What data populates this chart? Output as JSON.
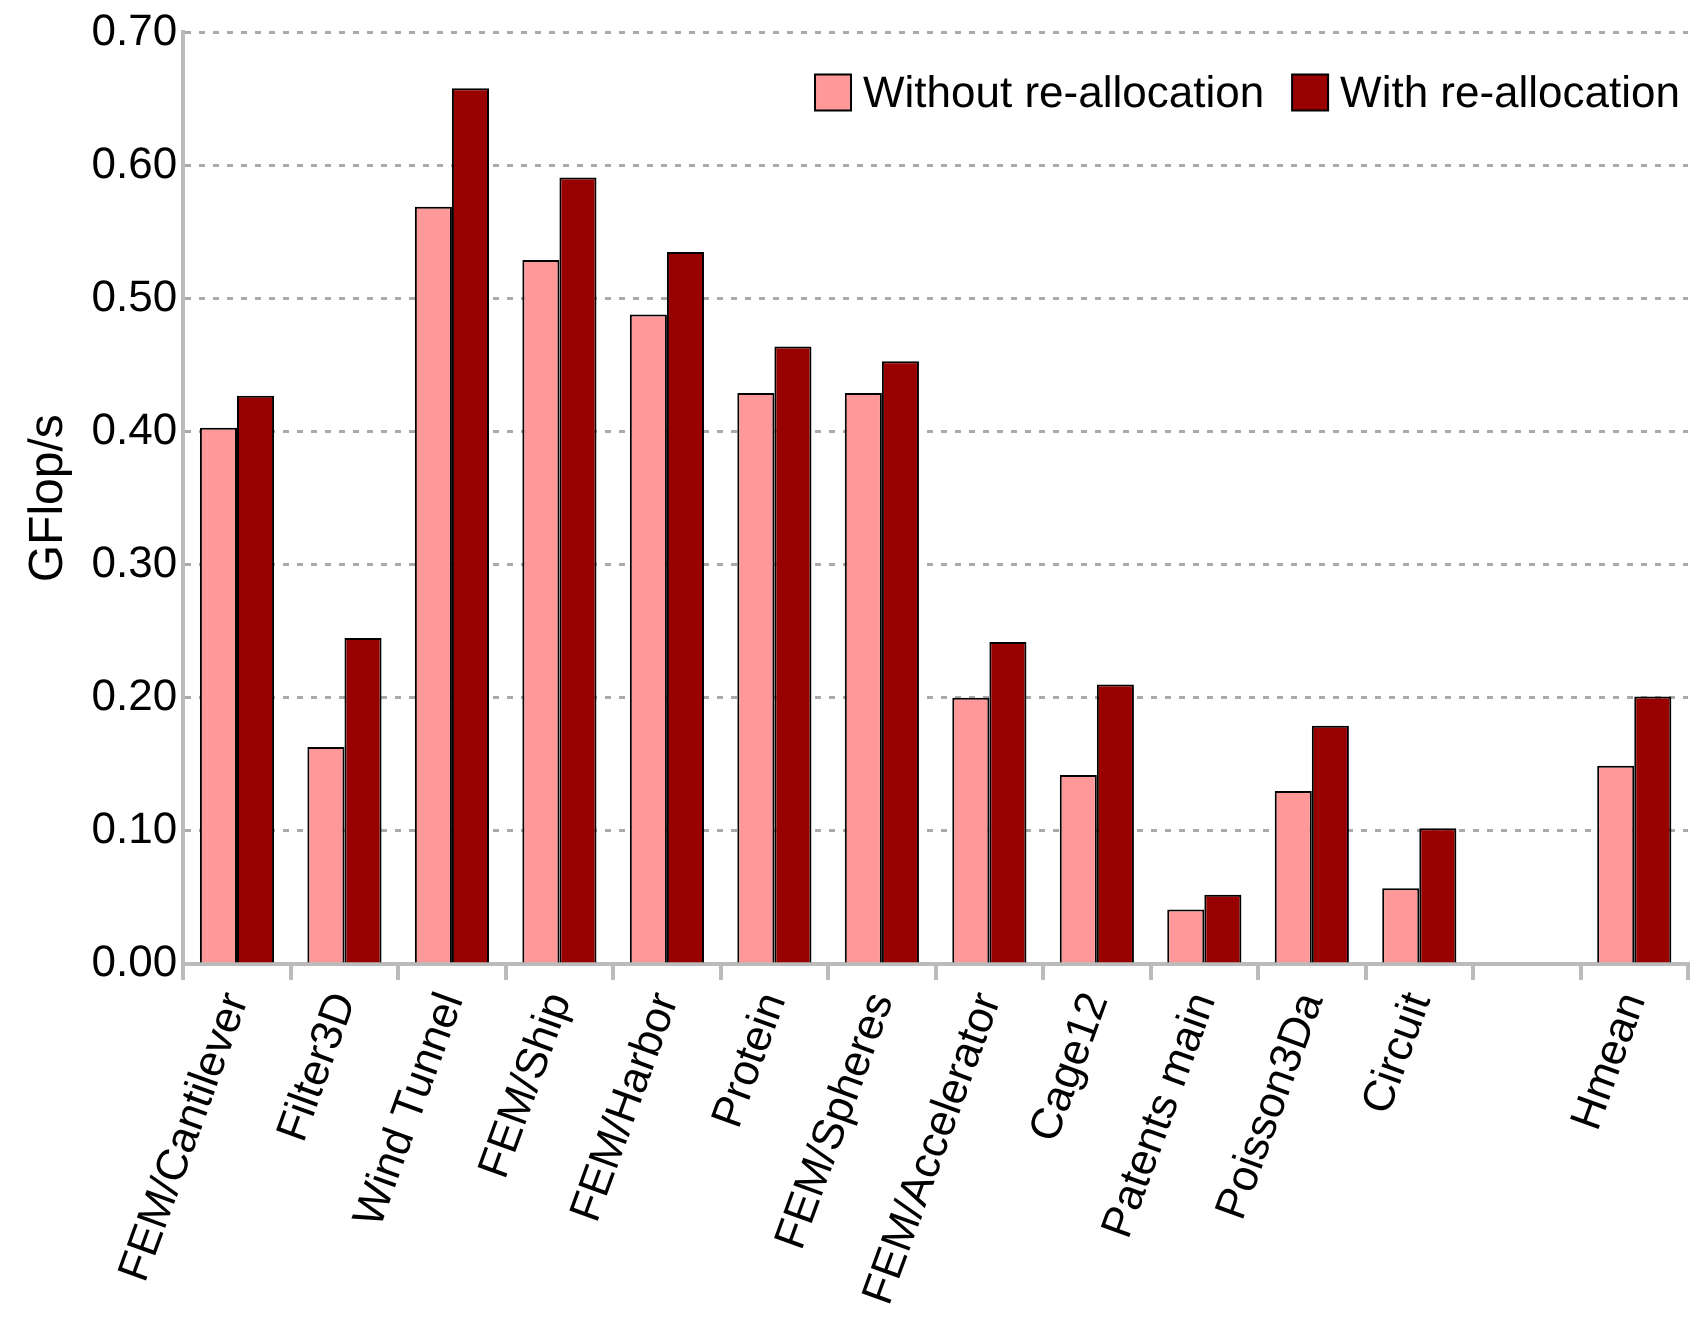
{
  "chart_data": {
    "type": "bar",
    "ylabel": "GFlop/s",
    "categories": [
      "FEM/Cantilever",
      "Filter3D",
      "Wind Tunnel",
      "FEM/Ship",
      "FEM/Harbor",
      "Protein",
      "FEM/Spheres",
      "FEM/Accelerator",
      "Cage12",
      "Patents main",
      "Poisson3Da",
      "Circuit",
      null,
      "Hmean"
    ],
    "series": [
      {
        "name": "Without re-allocation",
        "color": "#ff9999",
        "values": [
          0.403,
          0.163,
          0.569,
          0.529,
          0.488,
          0.429,
          0.429,
          0.2,
          0.142,
          0.041,
          0.13,
          0.057,
          null,
          0.149
        ]
      },
      {
        "name": "With re-allocation",
        "color": "#990000",
        "values": [
          0.427,
          0.245,
          0.658,
          0.591,
          0.535,
          0.464,
          0.453,
          0.242,
          0.21,
          0.052,
          0.179,
          0.102,
          null,
          0.201
        ]
      }
    ],
    "ylim": [
      0,
      0.7
    ],
    "yticks": [
      {
        "value": 0,
        "label": "0.00"
      },
      {
        "value": 0.1,
        "label": "0.10"
      },
      {
        "value": 0.2,
        "label": "0.20"
      },
      {
        "value": 0.3,
        "label": "0.30"
      },
      {
        "value": 0.4,
        "label": "0.40"
      },
      {
        "value": 0.5,
        "label": "0.50"
      },
      {
        "value": 0.6,
        "label": "0.60"
      },
      {
        "value": 0.7,
        "label": "0.70"
      }
    ],
    "grid": "y",
    "legend": "top right"
  }
}
